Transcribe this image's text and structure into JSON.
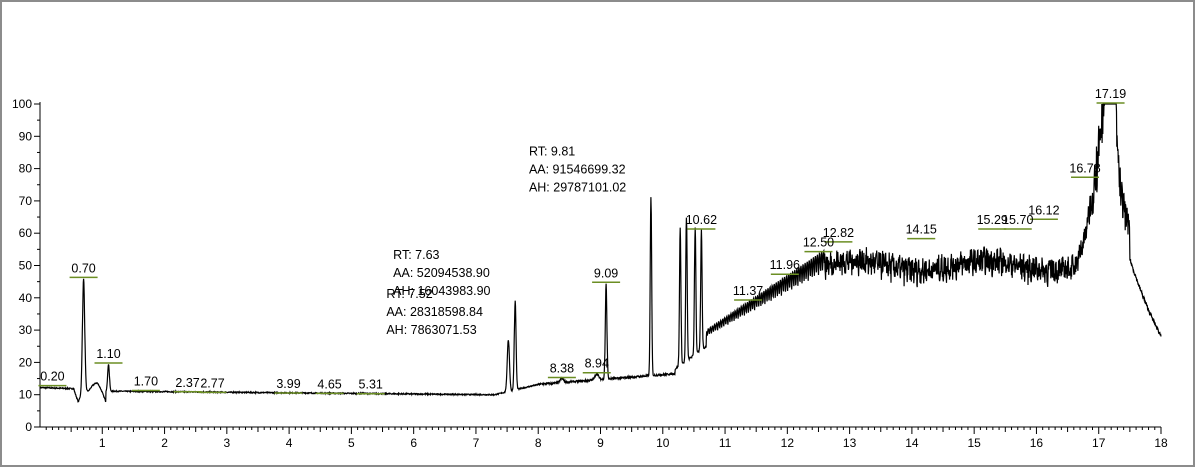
{
  "chart_data": {
    "type": "line",
    "title": "",
    "xlabel": "",
    "ylabel": "",
    "xlim": [
      0,
      18
    ],
    "ylim": [
      0,
      100
    ],
    "x_ticks": [
      1,
      2,
      3,
      4,
      5,
      6,
      7,
      8,
      9,
      10,
      11,
      12,
      13,
      14,
      15,
      16,
      17,
      18
    ],
    "y_ticks": [
      0,
      10,
      20,
      30,
      40,
      50,
      60,
      70,
      80,
      90,
      100
    ],
    "line_color": "#000000",
    "baseline_marker_color": "#6b8e23",
    "peaks": [
      {
        "rt": 0.2,
        "label": "0.20",
        "height": 12.5,
        "width": 0.06
      },
      {
        "rt": 0.7,
        "label": "0.70",
        "height": 46,
        "width": 0.025
      },
      {
        "rt": 1.1,
        "label": "1.10",
        "height": 19.5,
        "width": 0.02
      },
      {
        "rt": 1.7,
        "label": "1.70",
        "height": 11,
        "width": 0.05
      },
      {
        "rt": 2.37,
        "label": "2.37",
        "height": 10.6,
        "width": 0.05
      },
      {
        "rt": 2.77,
        "label": "2.77",
        "height": 10.4,
        "width": 0.05
      },
      {
        "rt": 3.99,
        "label": "3.99",
        "height": 10.2,
        "width": 0.05
      },
      {
        "rt": 4.65,
        "label": "4.65",
        "height": 10.1,
        "width": 0.05
      },
      {
        "rt": 5.31,
        "label": "5.31",
        "height": 10.0,
        "width": 0.05
      },
      {
        "rt": 7.52,
        "label": "",
        "height": 27,
        "width": 0.025
      },
      {
        "rt": 7.63,
        "label": "",
        "height": 39,
        "width": 0.02
      },
      {
        "rt": 8.38,
        "label": "8.38",
        "height": 15,
        "width": 0.04
      },
      {
        "rt": 8.94,
        "label": "8.94",
        "height": 16.5,
        "width": 0.04
      },
      {
        "rt": 9.09,
        "label": "9.09",
        "height": 44.5,
        "width": 0.018
      },
      {
        "rt": 9.81,
        "label": "",
        "height": 71,
        "width": 0.016
      },
      {
        "rt": 10.28,
        "label": "",
        "height": 62,
        "width": 0.016
      },
      {
        "rt": 10.38,
        "label": "",
        "height": 65,
        "width": 0.016
      },
      {
        "rt": 10.52,
        "label": "",
        "height": 62,
        "width": 0.016
      },
      {
        "rt": 10.62,
        "label": "10.62",
        "height": 61,
        "width": 0.016
      },
      {
        "rt": 11.37,
        "label": "11.37",
        "height": 39,
        "width": 0.04
      },
      {
        "rt": 11.96,
        "label": "11.96",
        "height": 47,
        "width": 0.04
      },
      {
        "rt": 12.5,
        "label": "12.50",
        "height": 54,
        "width": 0.04
      },
      {
        "rt": 12.82,
        "label": "12.82",
        "height": 57,
        "width": 0.04
      },
      {
        "rt": 14.15,
        "label": "14.15",
        "height": 58,
        "width": 0.04
      },
      {
        "rt": 15.29,
        "label": "15.29",
        "height": 61,
        "width": 0.04
      },
      {
        "rt": 15.7,
        "label": "15.70",
        "height": 61,
        "width": 0.04
      },
      {
        "rt": 16.12,
        "label": "16.12",
        "height": 64,
        "width": 0.03
      },
      {
        "rt": 16.78,
        "label": "16.78",
        "height": 77,
        "width": 0.04
      },
      {
        "rt": 17.19,
        "label": "17.19",
        "height": 100,
        "width": 0.1
      }
    ],
    "annotations": [
      {
        "rt": 7.52,
        "lines": [
          "RT: 7.52",
          "AA: 28318598.84",
          "AH: 7863071.53"
        ]
      },
      {
        "rt": 7.63,
        "lines": [
          "RT: 7.63",
          "AA: 52094538.90",
          "AH: 16043983.90"
        ]
      },
      {
        "rt": 9.81,
        "lines": [
          "RT: 9.81",
          "AA: 91546699.32",
          "AH: 29787101.02"
        ]
      }
    ]
  }
}
